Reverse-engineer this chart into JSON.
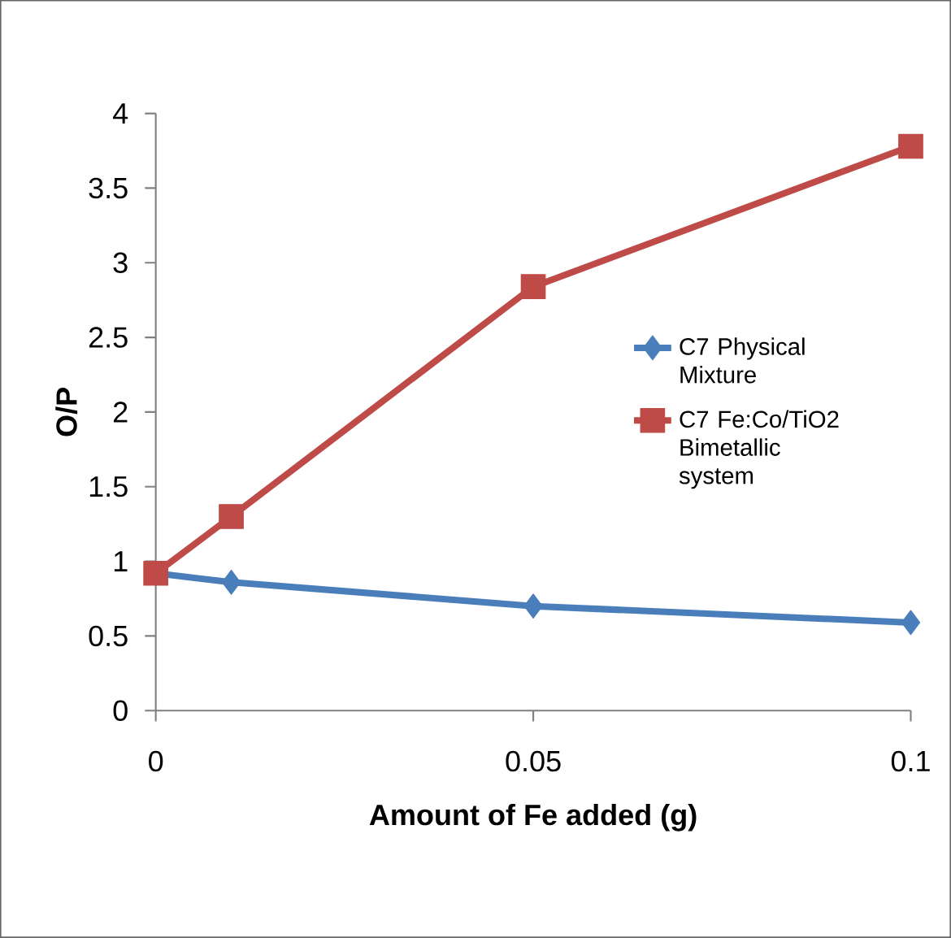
{
  "chart_data": {
    "type": "line",
    "xlabel": "Amount of Fe added (g)",
    "ylabel": "O/P",
    "x": [
      0,
      0.01,
      0.05,
      0.1
    ],
    "series": [
      {
        "name": "C7 Physical Mixture",
        "color": "#4a7ebb",
        "marker": "diamond",
        "values": [
          0.92,
          0.86,
          0.7,
          0.59
        ]
      },
      {
        "name": "C7 Fe:Co/TiO2 Bimetallic system",
        "color": "#be4b48",
        "marker": "square",
        "values": [
          0.92,
          1.3,
          2.84,
          3.78
        ]
      }
    ],
    "xlim": [
      0,
      0.1
    ],
    "xticks": [
      0,
      0.05,
      0.1
    ],
    "ylim": [
      0,
      4
    ],
    "yticks": [
      0,
      0.5,
      1,
      1.5,
      2,
      2.5,
      3,
      3.5,
      4
    ],
    "grid": false,
    "legend": "right",
    "line_style": "solid"
  }
}
